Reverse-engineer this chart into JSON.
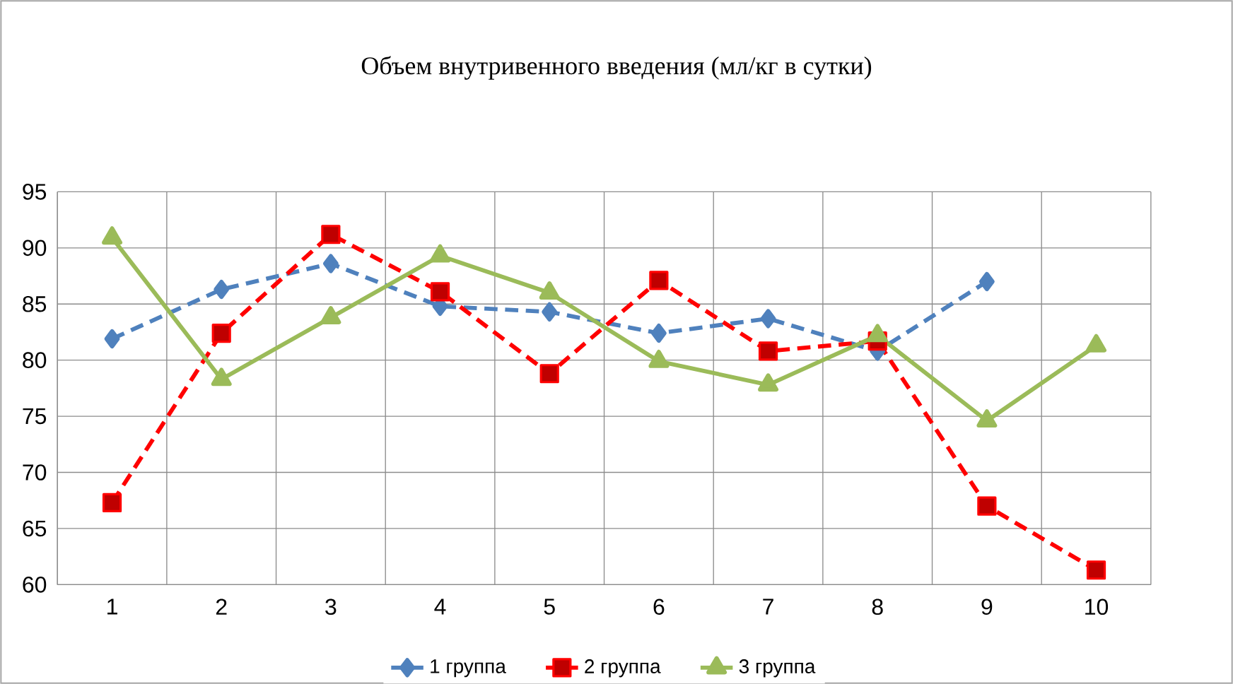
{
  "chart_data": {
    "type": "line",
    "title": "Объем внутривенного введения (мл/кг в сутки)",
    "categories": [
      "1",
      "2",
      "3",
      "4",
      "5",
      "6",
      "7",
      "8",
      "9",
      "10"
    ],
    "series": [
      {
        "name": "1 группа",
        "color": "#4f81bd",
        "marker": "diamond",
        "line_style": "dashed",
        "values": [
          81.9,
          86.3,
          88.6,
          84.8,
          84.3,
          82.4,
          83.7,
          80.8,
          87.0,
          null
        ]
      },
      {
        "name": "2 группа",
        "color": "#ff0000",
        "marker": "square",
        "line_style": "dashed",
        "values": [
          67.3,
          82.4,
          91.2,
          86.1,
          78.8,
          87.1,
          80.8,
          81.7,
          67.0,
          61.3
        ]
      },
      {
        "name": "3 группа",
        "color": "#9bbb59",
        "marker": "triangle",
        "line_style": "solid",
        "values": [
          90.9,
          78.3,
          83.8,
          89.3,
          86.0,
          79.9,
          77.8,
          82.2,
          74.6,
          81.3
        ]
      }
    ],
    "ylim": [
      60,
      95
    ],
    "yticks": [
      60,
      65,
      70,
      75,
      80,
      85,
      90,
      95
    ],
    "grid": true,
    "legend": "bottom"
  }
}
